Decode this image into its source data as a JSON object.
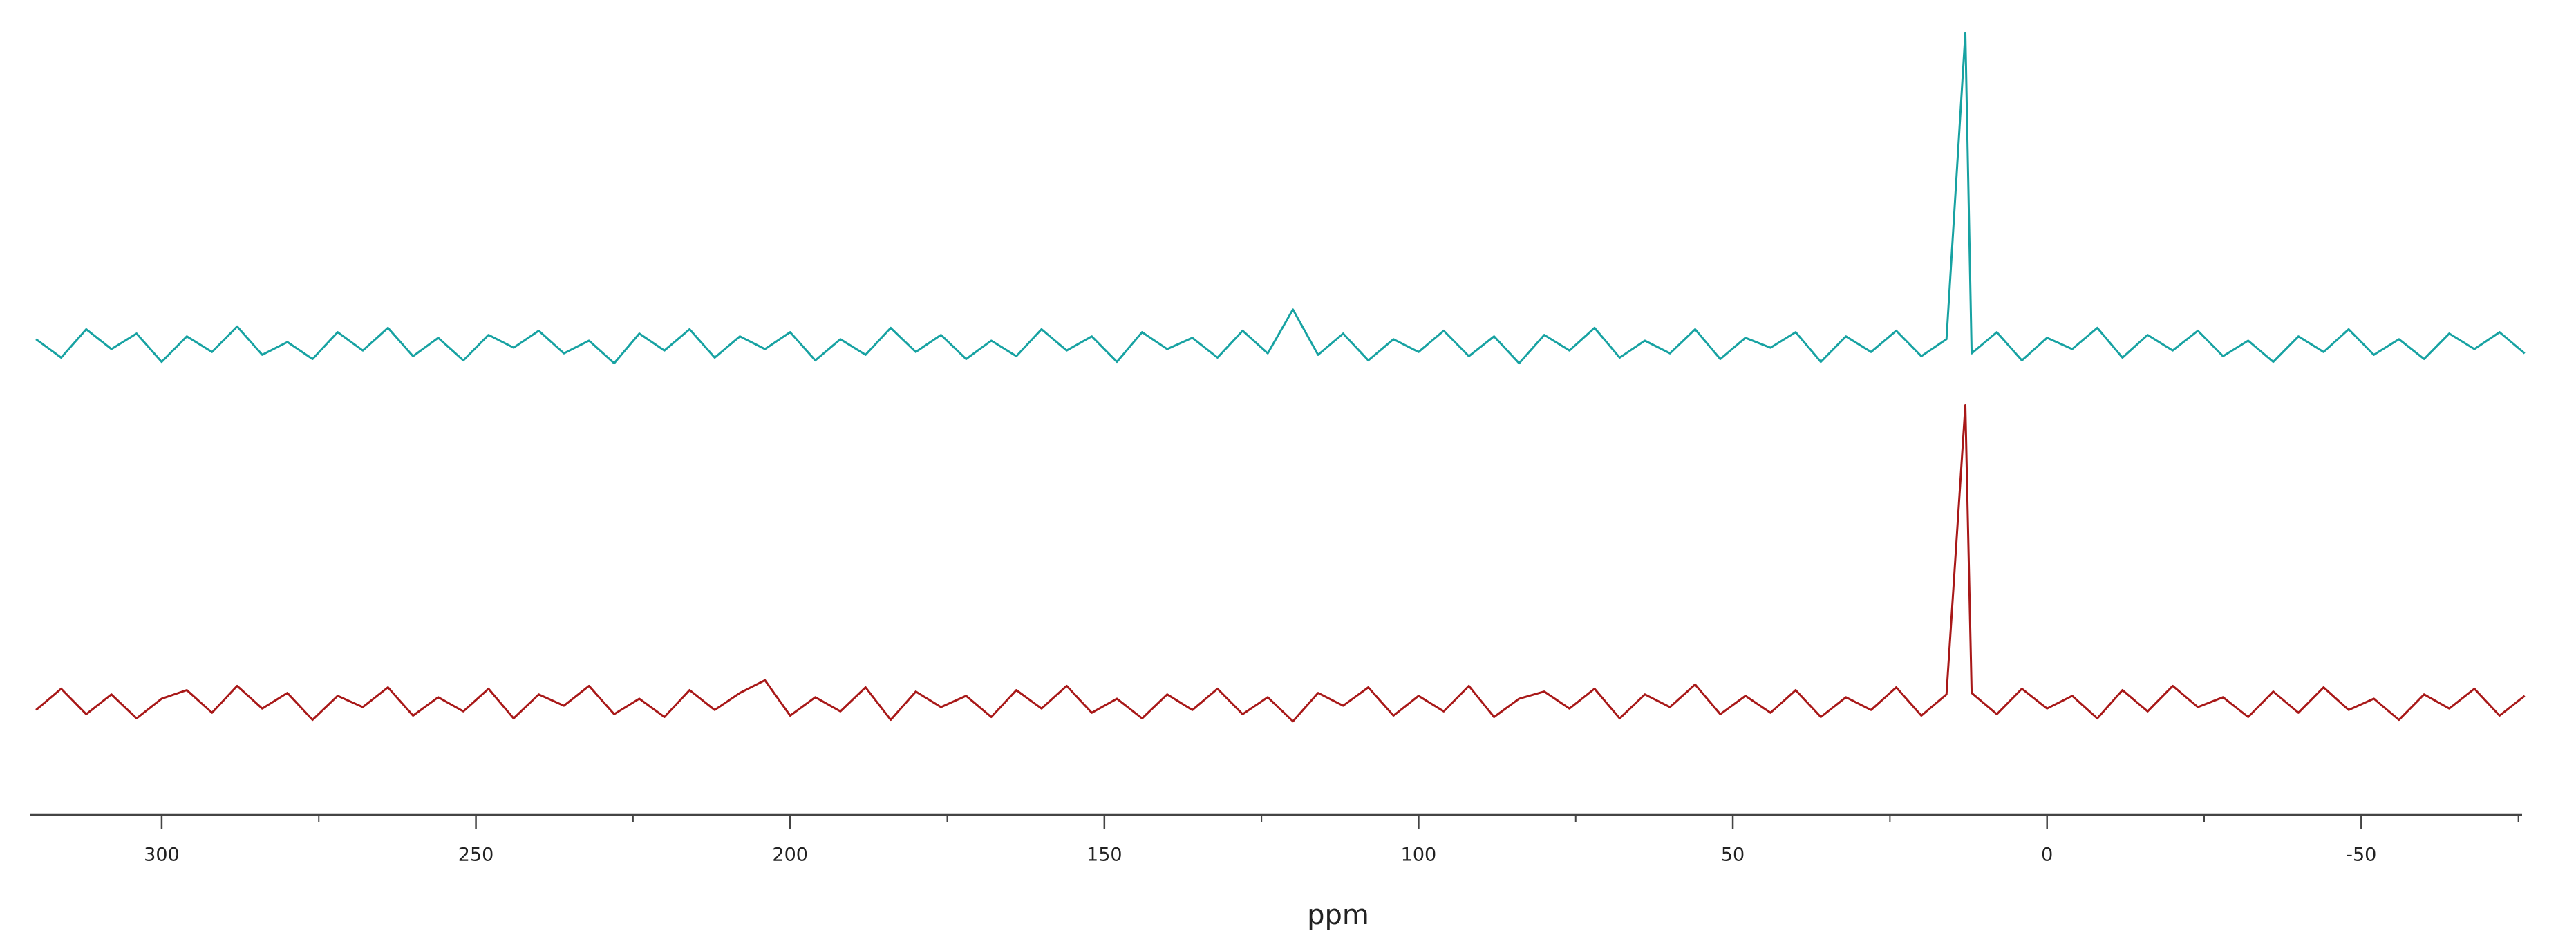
{
  "chart_data": {
    "type": "line",
    "x_label": "ppm",
    "xlim": [
      321,
      -79
    ],
    "xticks": [
      300,
      250,
      200,
      150,
      100,
      50,
      0,
      -50
    ],
    "xticks_minor": [
      275,
      225,
      175,
      125,
      75,
      25,
      -25,
      -75
    ],
    "ylim": [
      -2,
      24
    ],
    "x": [
      320,
      316,
      312,
      308,
      304,
      300,
      296,
      292,
      288,
      284,
      280,
      276,
      272,
      268,
      264,
      260,
      256,
      252,
      248,
      244,
      240,
      236,
      232,
      228,
      224,
      220,
      216,
      212,
      208,
      204,
      200,
      196,
      192,
      188,
      184,
      180,
      176,
      172,
      168,
      164,
      160,
      156,
      152,
      148,
      144,
      140,
      136,
      132,
      128,
      124,
      120,
      116,
      112,
      108,
      104,
      100,
      96,
      92,
      88,
      84,
      80,
      76,
      72,
      68,
      64,
      60,
      56,
      52,
      48,
      44,
      40,
      36,
      32,
      28,
      24,
      20,
      16,
      13,
      12,
      8,
      4,
      0,
      -4,
      -8,
      -12,
      -16,
      -20,
      -24,
      -28,
      -32,
      -36,
      -40,
      -44,
      -48,
      -52,
      -56,
      -60,
      -64,
      -68,
      -72,
      -76
    ],
    "series": [
      {
        "color": "#17a2a2",
        "values": [
          0.4,
          -0.9,
          1.1,
          -0.3,
          0.8,
          -1.2,
          0.6,
          -0.5,
          1.3,
          -0.7,
          0.2,
          -1.0,
          0.9,
          -0.4,
          1.2,
          -0.8,
          0.5,
          -1.1,
          0.7,
          -0.2,
          1.0,
          -0.6,
          0.3,
          -1.3,
          0.8,
          -0.4,
          1.1,
          -0.9,
          0.6,
          -0.3,
          0.9,
          -1.1,
          0.4,
          -0.7,
          1.2,
          -0.5,
          0.7,
          -1.0,
          0.3,
          -0.8,
          1.1,
          -0.4,
          0.6,
          -1.2,
          0.9,
          -0.3,
          0.5,
          -0.9,
          1.0,
          -0.6,
          2.5,
          -0.7,
          0.8,
          -1.1,
          0.4,
          -0.5,
          1.0,
          -0.8,
          0.6,
          -1.3,
          0.7,
          -0.4,
          1.2,
          -0.9,
          0.3,
          -0.6,
          1.1,
          -1.0,
          0.5,
          -0.2,
          0.9,
          -1.2,
          0.6,
          -0.5,
          1.0,
          -0.8,
          0.4,
          22,
          -0.6,
          0.9,
          -1.1,
          0.5,
          -0.3,
          1.2,
          -0.9,
          0.7,
          -0.4,
          1.0,
          -0.8,
          0.3,
          -1.2,
          0.6,
          -0.5,
          1.1,
          -0.7,
          0.4,
          -1.0,
          0.8,
          -0.3,
          0.9,
          -0.6
        ]
      },
      {
        "color": "#a81818",
        "values": [
          -0.5,
          1.0,
          -0.8,
          0.6,
          -1.1,
          0.3,
          0.9,
          -0.7,
          1.2,
          -0.4,
          0.7,
          -1.2,
          0.5,
          -0.3,
          1.1,
          -0.9,
          0.4,
          -0.6,
          1.0,
          -1.1,
          0.6,
          -0.2,
          1.2,
          -0.8,
          0.3,
          -1.0,
          0.9,
          -0.5,
          0.7,
          1.6,
          -0.9,
          0.4,
          -0.6,
          1.1,
          -1.2,
          0.8,
          -0.3,
          0.5,
          -1.0,
          0.9,
          -0.4,
          1.2,
          -0.7,
          0.3,
          -1.1,
          0.6,
          -0.5,
          1.0,
          -0.8,
          0.4,
          -1.3,
          0.7,
          -0.2,
          1.1,
          -0.9,
          0.5,
          -0.6,
          1.2,
          -1.0,
          0.3,
          0.8,
          -0.4,
          1.0,
          -1.1,
          0.6,
          -0.3,
          1.3,
          -0.8,
          0.5,
          -0.7,
          0.9,
          -1.0,
          0.4,
          -0.5,
          1.1,
          -0.9,
          0.6,
          21,
          0.7,
          -0.8,
          1.0,
          -0.4,
          0.5,
          -1.1,
          0.9,
          -0.6,
          1.2,
          -0.3,
          0.4,
          -1.0,
          0.8,
          -0.7,
          1.1,
          -0.5,
          0.3,
          -1.2,
          0.6,
          -0.4,
          1.0,
          -0.9,
          0.5
        ]
      }
    ]
  }
}
